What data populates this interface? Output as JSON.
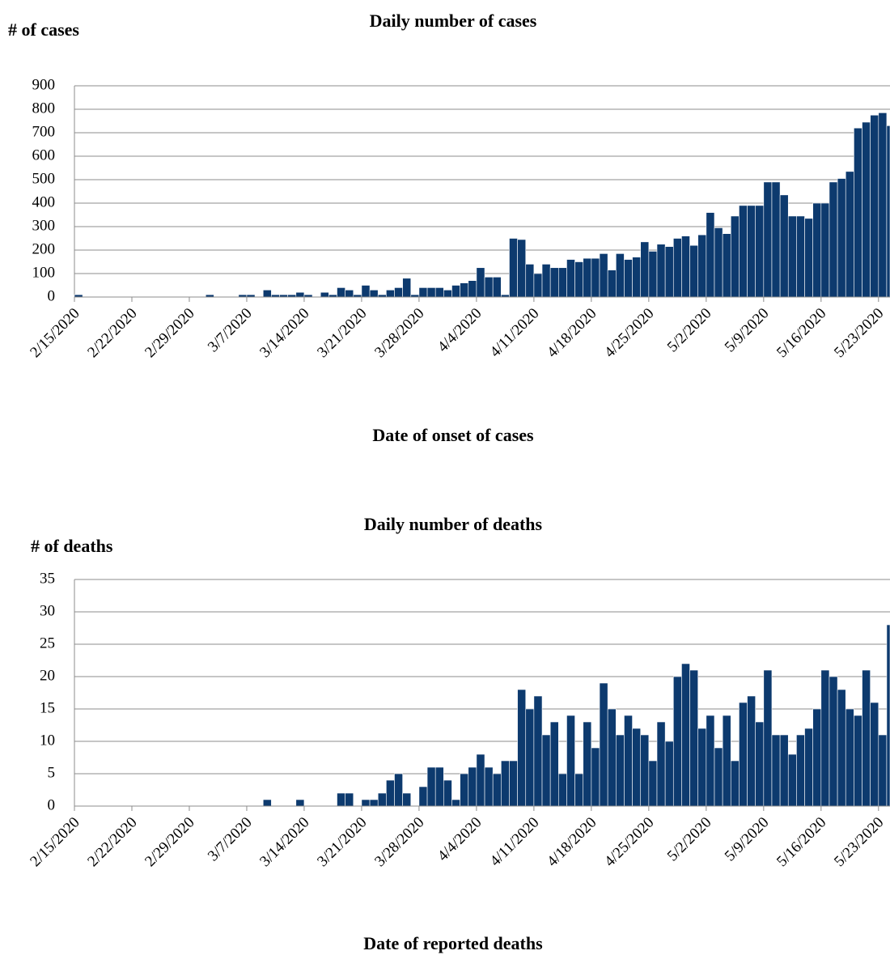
{
  "chart_data": [
    {
      "type": "bar",
      "title": "Daily number of cases",
      "y_label": "# of cases",
      "x_label": "Date of onset of cases",
      "categories": [
        "2/15/2020",
        null,
        null,
        null,
        null,
        null,
        null,
        "2/22/2020",
        null,
        null,
        null,
        null,
        null,
        null,
        "2/29/2020",
        null,
        null,
        null,
        null,
        null,
        null,
        "3/7/2020",
        null,
        null,
        null,
        null,
        null,
        null,
        "3/14/2020",
        null,
        null,
        null,
        null,
        null,
        null,
        "3/21/2020",
        null,
        null,
        null,
        null,
        null,
        null,
        "3/28/2020",
        null,
        null,
        null,
        null,
        null,
        null,
        "4/4/2020",
        null,
        null,
        null,
        null,
        null,
        null,
        "4/11/2020",
        null,
        null,
        null,
        null,
        null,
        null,
        "4/18/2020",
        null,
        null,
        null,
        null,
        null,
        null,
        "4/25/2020",
        null,
        null,
        null,
        null,
        null,
        null,
        "5/2/2020",
        null,
        null,
        null,
        null,
        null,
        null,
        "5/9/2020",
        null,
        null,
        null,
        null,
        null,
        null,
        "5/16/2020",
        null,
        null,
        null,
        null,
        null,
        null,
        "5/23/2020",
        null
      ],
      "values": [
        10,
        0,
        0,
        0,
        0,
        0,
        0,
        0,
        0,
        0,
        0,
        0,
        0,
        0,
        0,
        0,
        10,
        0,
        0,
        0,
        10,
        10,
        0,
        30,
        10,
        10,
        10,
        20,
        10,
        0,
        20,
        10,
        40,
        30,
        10,
        50,
        30,
        10,
        30,
        40,
        80,
        10,
        40,
        40,
        40,
        30,
        50,
        60,
        70,
        125,
        85,
        85,
        10,
        250,
        245,
        140,
        100,
        140,
        125,
        125,
        160,
        150,
        165,
        165,
        185,
        115,
        185,
        160,
        170,
        235,
        195,
        225,
        215,
        250,
        260,
        220,
        265,
        360,
        295,
        270,
        345,
        390,
        390,
        390,
        490,
        490,
        435,
        345,
        345,
        335,
        400,
        400,
        490,
        505,
        535,
        720,
        745,
        775,
        785,
        730
      ],
      "color": "#0d3a6e",
      "ylim": [
        0,
        900
      ],
      "yticks": [
        0,
        100,
        200,
        300,
        400,
        500,
        600,
        700,
        800,
        900
      ],
      "grid": true
    },
    {
      "type": "bar",
      "title": "Daily number of deaths",
      "y_label": "# of deaths",
      "x_label": "Date of reported deaths",
      "categories": [
        "2/15/2020",
        null,
        null,
        null,
        null,
        null,
        null,
        "2/22/2020",
        null,
        null,
        null,
        null,
        null,
        null,
        "2/29/2020",
        null,
        null,
        null,
        null,
        null,
        null,
        "3/7/2020",
        null,
        null,
        null,
        null,
        null,
        null,
        "3/14/2020",
        null,
        null,
        null,
        null,
        null,
        null,
        "3/21/2020",
        null,
        null,
        null,
        null,
        null,
        null,
        "3/28/2020",
        null,
        null,
        null,
        null,
        null,
        null,
        "4/4/2020",
        null,
        null,
        null,
        null,
        null,
        null,
        "4/11/2020",
        null,
        null,
        null,
        null,
        null,
        null,
        "4/18/2020",
        null,
        null,
        null,
        null,
        null,
        null,
        "4/25/2020",
        null,
        null,
        null,
        null,
        null,
        null,
        "5/2/2020",
        null,
        null,
        null,
        null,
        null,
        null,
        "5/9/2020",
        null,
        null,
        null,
        null,
        null,
        null,
        "5/16/2020",
        null,
        null,
        null,
        null,
        null,
        null,
        "5/23/2020",
        null
      ],
      "values": [
        0,
        0,
        0,
        0,
        0,
        0,
        0,
        0,
        0,
        0,
        0,
        0,
        0,
        0,
        0,
        0,
        0,
        0,
        0,
        0,
        0,
        0,
        0,
        1,
        0,
        0,
        0,
        1,
        0,
        0,
        0,
        0,
        2,
        2,
        0,
        1,
        1,
        2,
        4,
        5,
        2,
        0,
        3,
        6,
        6,
        4,
        1,
        5,
        6,
        8,
        6,
        5,
        7,
        7,
        18,
        15,
        17,
        11,
        13,
        5,
        14,
        5,
        13,
        9,
        19,
        15,
        11,
        14,
        12,
        11,
        7,
        13,
        10,
        20,
        22,
        21,
        12,
        14,
        9,
        14,
        7,
        16,
        17,
        13,
        21,
        11,
        11,
        8,
        11,
        12,
        15,
        21,
        20,
        18,
        15,
        14,
        21,
        16,
        11,
        28
      ],
      "color": "#0d3a6e",
      "ylim": [
        0,
        35
      ],
      "yticks": [
        0,
        5,
        10,
        15,
        20,
        25,
        30,
        35
      ],
      "grid": true
    }
  ]
}
